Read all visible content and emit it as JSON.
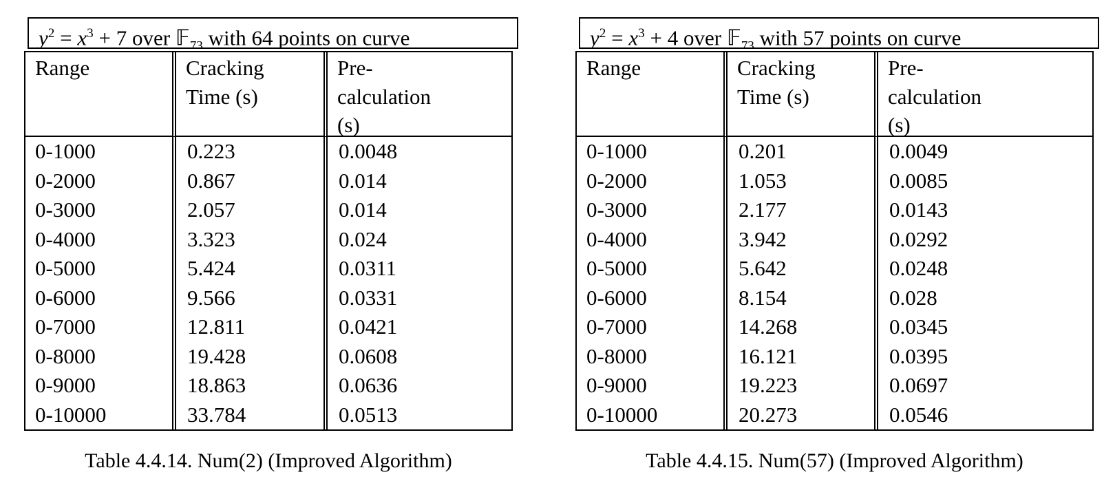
{
  "colors": {
    "background": "#ffffff",
    "text": "#000000",
    "border": "#000000"
  },
  "tables": [
    {
      "title": {
        "var1": "y",
        "sup1": "2",
        "eq": " = ",
        "var2": "x",
        "sup2": "3",
        "mid": " + 7 over ",
        "field": "𝔽",
        "field_sub": "73",
        "suffix": " with 64 points on curve"
      },
      "headers": [
        [
          "Range"
        ],
        [
          "Cracking",
          "Time (s)"
        ],
        [
          "Pre-",
          "calculation",
          "(s)"
        ]
      ],
      "rows": [
        [
          "0-1000",
          "0.223",
          "0.0048"
        ],
        [
          "0-2000",
          "0.867",
          "0.014"
        ],
        [
          "0-3000",
          "2.057",
          "0.014"
        ],
        [
          "0-4000",
          "3.323",
          "0.024"
        ],
        [
          "0-5000",
          "5.424",
          "0.0311"
        ],
        [
          "0-6000",
          "9.566",
          "0.0331"
        ],
        [
          "0-7000",
          "12.811",
          "0.0421"
        ],
        [
          "0-8000",
          "19.428",
          "0.0608"
        ],
        [
          "0-9000",
          "18.863",
          "0.0636"
        ],
        [
          "0-10000",
          "33.784",
          "0.0513"
        ]
      ],
      "caption": "Table 4.4.14. Num(2) (Improved Algorithm)"
    },
    {
      "title": {
        "var1": "y",
        "sup1": "2",
        "eq": " = ",
        "var2": "x",
        "sup2": "3",
        "mid": " + 4 over ",
        "field": "𝔽",
        "field_sub": "73",
        "suffix": " with 57 points on curve"
      },
      "headers": [
        [
          "Range"
        ],
        [
          "Cracking",
          "Time (s)"
        ],
        [
          "Pre-",
          "calculation",
          "(s)"
        ]
      ],
      "rows": [
        [
          "0-1000",
          "0.201",
          "0.0049"
        ],
        [
          "0-2000",
          "1.053",
          "0.0085"
        ],
        [
          "0-3000",
          "2.177",
          "0.0143"
        ],
        [
          "0-4000",
          "3.942",
          "0.0292"
        ],
        [
          "0-5000",
          "5.642",
          "0.0248"
        ],
        [
          "0-6000",
          "8.154",
          "0.028"
        ],
        [
          "0-7000",
          "14.268",
          "0.0345"
        ],
        [
          "0-8000",
          "16.121",
          "0.0395"
        ],
        [
          "0-9000",
          "19.223",
          "0.0697"
        ],
        [
          "0-10000",
          "20.273",
          "0.0546"
        ]
      ],
      "caption": "Table 4.4.15. Num(57) (Improved Algorithm)"
    }
  ]
}
